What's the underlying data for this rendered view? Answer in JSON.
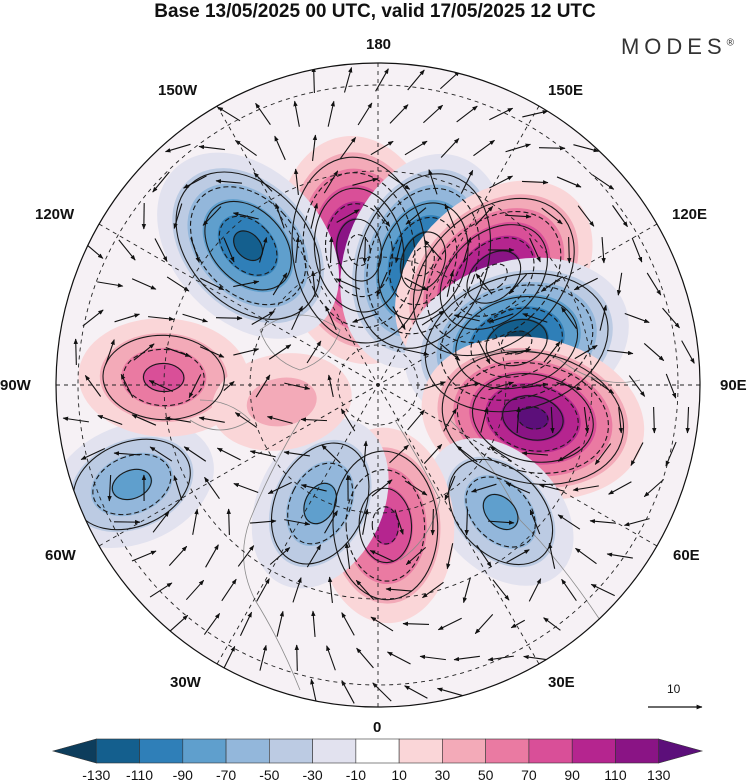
{
  "header": {
    "title": "Base 13/05/2025 00 UTC, valid 17/05/2025 12 UTC",
    "brand": "MODES",
    "brand_mark": "®"
  },
  "map": {
    "projection": "north-polar-stereographic",
    "field": "anomaly with wind vectors",
    "longitude_labels": [
      "180",
      "150E",
      "120E",
      "90E",
      "60E",
      "30E",
      "0",
      "30W",
      "60W",
      "90W",
      "120W",
      "150W"
    ],
    "vector_reference_value": "10",
    "anomaly_centers": [
      {
        "lon": -172,
        "lat": 57,
        "value": 130
      },
      {
        "lon": 160,
        "lat": 58,
        "value": -120
      },
      {
        "lon": 133,
        "lat": 52,
        "value": 125
      },
      {
        "lon": 107,
        "lat": 55,
        "value": -130
      },
      {
        "lon": 78,
        "lat": 52,
        "value": 125
      },
      {
        "lon": 44,
        "lat": 48,
        "value": -60
      },
      {
        "lon": 3,
        "lat": 56,
        "value": 90
      },
      {
        "lon": -26,
        "lat": 58,
        "value": -70
      },
      {
        "lon": -68,
        "lat": 30,
        "value": -60
      },
      {
        "lon": -92,
        "lat": 40,
        "value": 60
      },
      {
        "lon": -137,
        "lat": 45,
        "value": -110
      },
      {
        "lon": -80,
        "lat": 66,
        "value": 25
      }
    ]
  },
  "colorbar": {
    "ticks": [
      "-130",
      "-110",
      "-90",
      "-70",
      "-50",
      "-30",
      "-10",
      "10",
      "30",
      "50",
      "70",
      "90",
      "110",
      "130"
    ],
    "colors": [
      "#0d3d5c",
      "#145f8e",
      "#2f7fb8",
      "#5f9fcd",
      "#93b7db",
      "#bccbe3",
      "#e2e2ef",
      "#ffffff",
      "#fad6d8",
      "#f3aab8",
      "#ea7aa2",
      "#d94f98",
      "#b5258f",
      "#8a1485",
      "#5c0f7a"
    ]
  }
}
